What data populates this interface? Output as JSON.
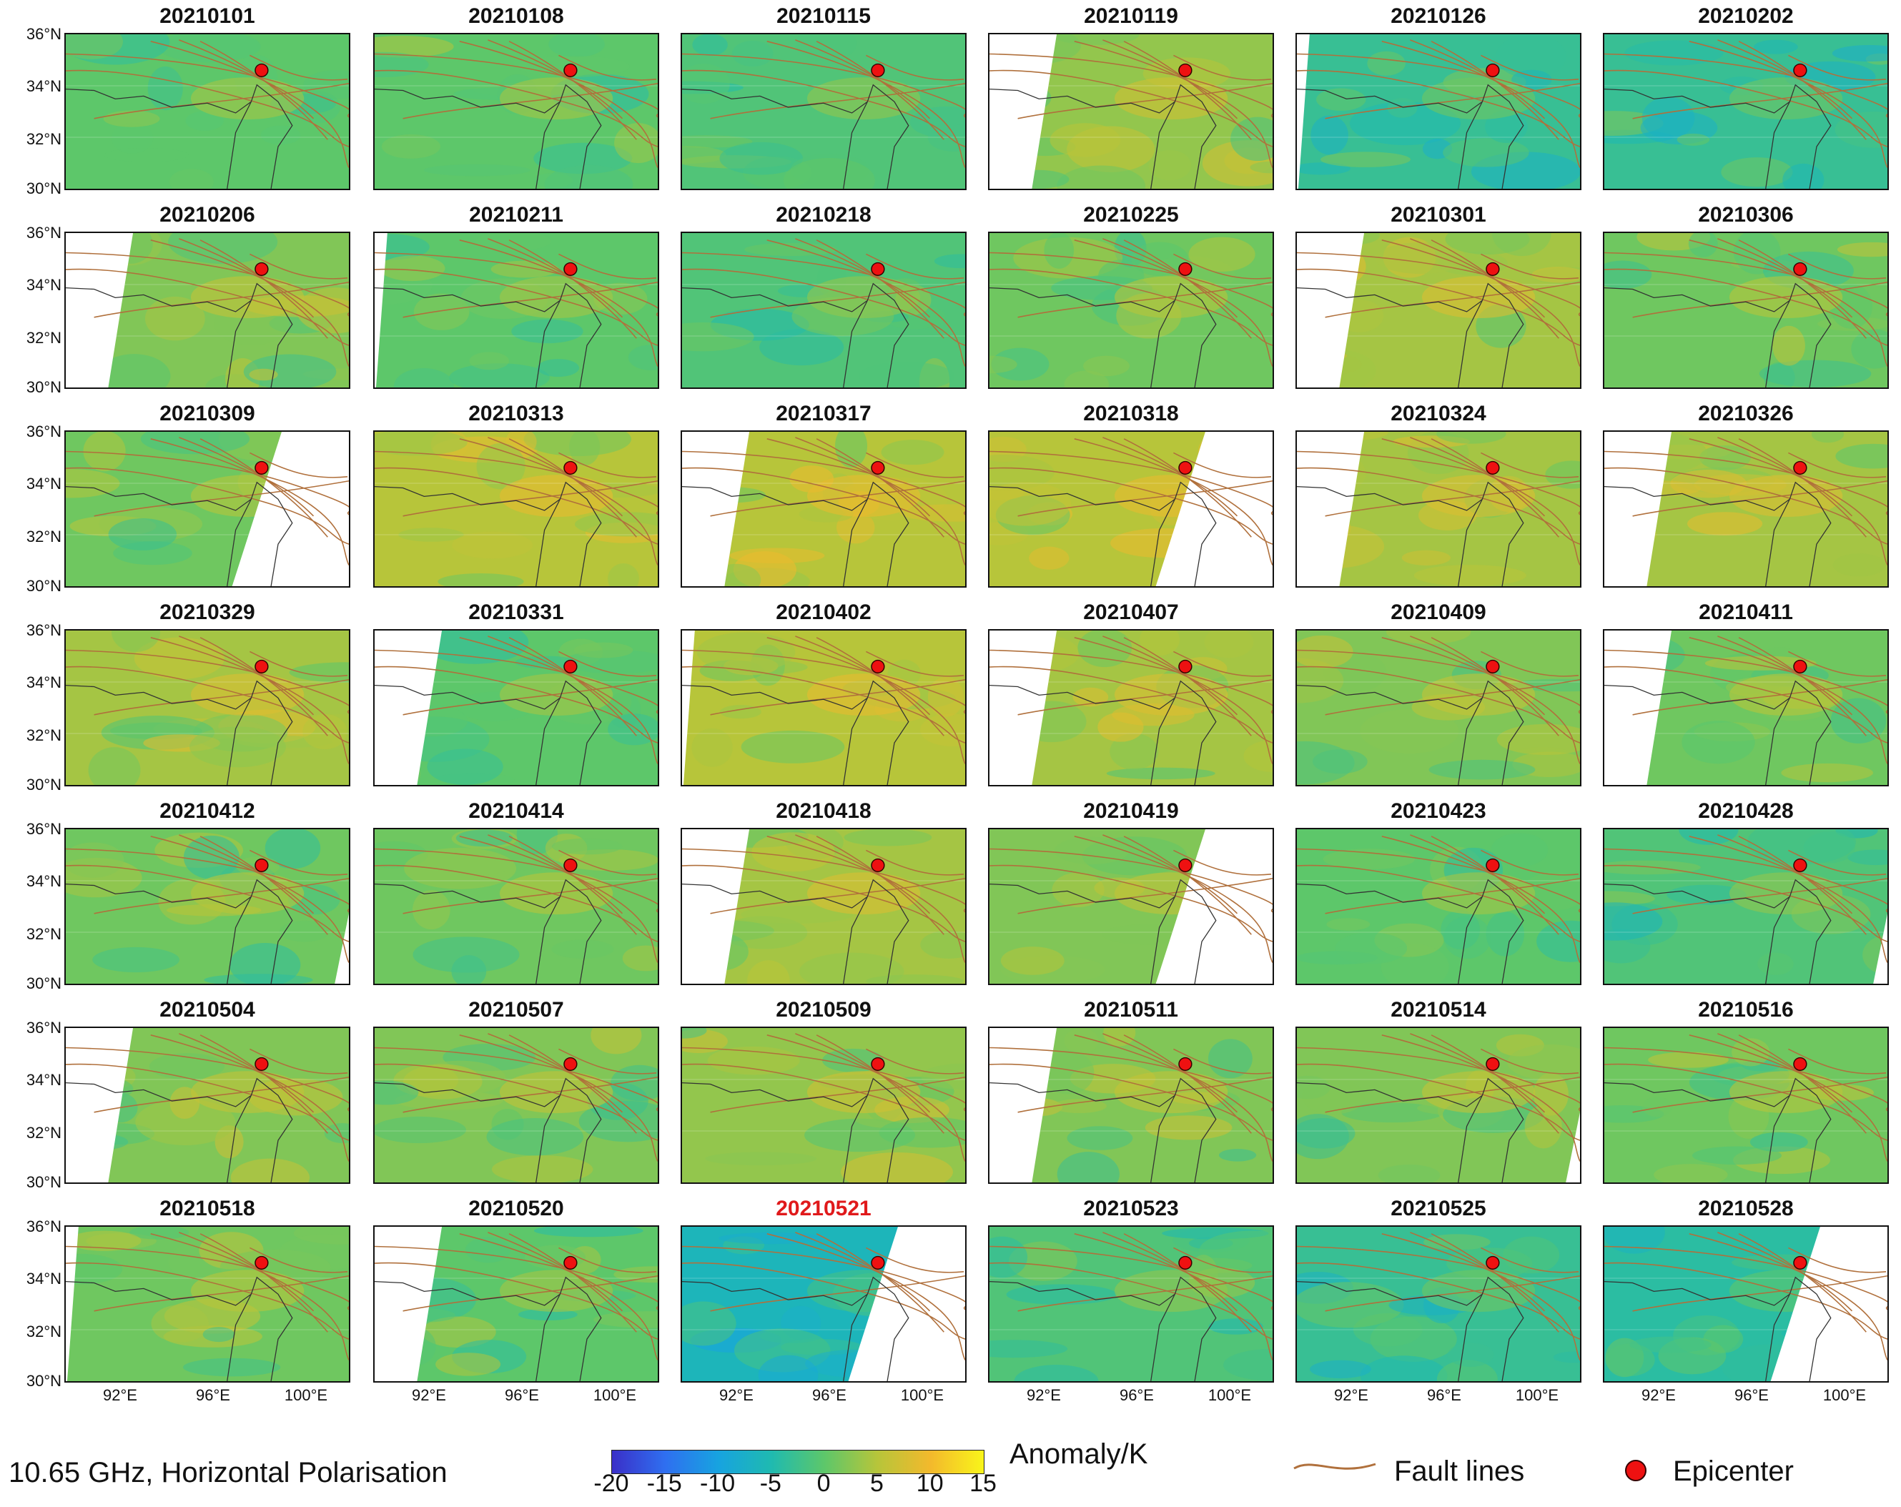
{
  "chart_data": {
    "type": "heatmap",
    "title": "10.65 GHz, Horizontal Polarisation",
    "colorbar": {
      "label": "Anomaly/K",
      "range": [
        -20,
        15
      ],
      "ticks": [
        "-20",
        "-15",
        "-10",
        "-5",
        "0",
        "5",
        "10",
        "15"
      ],
      "colors": [
        "#3a2fc8",
        "#2f6ff0",
        "#17a3e0",
        "#1fbab0",
        "#5dc76a",
        "#b7c53a",
        "#f3b92c",
        "#f9f51a"
      ]
    },
    "lat_ticks": [
      "36°N",
      "34°N",
      "32°N",
      "30°N"
    ],
    "lon_ticks": [
      "92°E",
      "96°E",
      "100°E"
    ],
    "lat_range": [
      30,
      36
    ],
    "lon_range": [
      90,
      102
    ],
    "epicenter": {
      "lon": 98.3,
      "lat": 34.6
    },
    "highlight_date": "20210521",
    "panels": [
      {
        "date": "20210101",
        "mean": 0,
        "swath": "full"
      },
      {
        "date": "20210108",
        "mean": 0,
        "swath": "full"
      },
      {
        "date": "20210115",
        "mean": -1,
        "swath": "full"
      },
      {
        "date": "20210119",
        "mean": 3,
        "swath": "left-gap"
      },
      {
        "date": "20210126",
        "mean": -3,
        "swath": "left-sliver"
      },
      {
        "date": "20210202",
        "mean": -3,
        "swath": "full"
      },
      {
        "date": "20210206",
        "mean": 2,
        "swath": "left-gap"
      },
      {
        "date": "20210211",
        "mean": 0,
        "swath": "left-sliver"
      },
      {
        "date": "20210218",
        "mean": -1,
        "swath": "full"
      },
      {
        "date": "20210225",
        "mean": 1,
        "swath": "full"
      },
      {
        "date": "20210301",
        "mean": 4,
        "swath": "left-gap"
      },
      {
        "date": "20210306",
        "mean": 1,
        "swath": "full"
      },
      {
        "date": "20210309",
        "mean": 1,
        "swath": "right-gap"
      },
      {
        "date": "20210313",
        "mean": 5,
        "swath": "full"
      },
      {
        "date": "20210317",
        "mean": 5,
        "swath": "left-gap"
      },
      {
        "date": "20210318",
        "mean": 5,
        "swath": "right-gap"
      },
      {
        "date": "20210324",
        "mean": 4,
        "swath": "left-gap"
      },
      {
        "date": "20210326",
        "mean": 4,
        "swath": "left-gap"
      },
      {
        "date": "20210329",
        "mean": 4,
        "swath": "full"
      },
      {
        "date": "20210331",
        "mean": 0,
        "swath": "left-gap"
      },
      {
        "date": "20210402",
        "mean": 5,
        "swath": "left-sliver"
      },
      {
        "date": "20210407",
        "mean": 4,
        "swath": "left-gap"
      },
      {
        "date": "20210409",
        "mean": 2,
        "swath": "full"
      },
      {
        "date": "20210411",
        "mean": 1,
        "swath": "left-gap"
      },
      {
        "date": "20210412",
        "mean": 1,
        "swath": "right-corner"
      },
      {
        "date": "20210414",
        "mean": 1,
        "swath": "full"
      },
      {
        "date": "20210418",
        "mean": 4,
        "swath": "left-gap"
      },
      {
        "date": "20210419",
        "mean": 2,
        "swath": "right-gap"
      },
      {
        "date": "20210423",
        "mean": 0,
        "swath": "full"
      },
      {
        "date": "20210428",
        "mean": -1,
        "swath": "right-corner"
      },
      {
        "date": "20210504",
        "mean": 2,
        "swath": "left-gap"
      },
      {
        "date": "20210507",
        "mean": 2,
        "swath": "full"
      },
      {
        "date": "20210509",
        "mean": 3,
        "swath": "full"
      },
      {
        "date": "20210511",
        "mean": 2,
        "swath": "left-gap"
      },
      {
        "date": "20210514",
        "mean": 2,
        "swath": "right-corner"
      },
      {
        "date": "20210516",
        "mean": 1,
        "swath": "full"
      },
      {
        "date": "20210518",
        "mean": 1,
        "swath": "left-sliver"
      },
      {
        "date": "20210520",
        "mean": 0,
        "swath": "left-gap"
      },
      {
        "date": "20210521",
        "mean": -6,
        "swath": "right-gap"
      },
      {
        "date": "20210523",
        "mean": -1,
        "swath": "full"
      },
      {
        "date": "20210525",
        "mean": -3,
        "swath": "full"
      },
      {
        "date": "20210528",
        "mean": -4,
        "swath": "right-gap"
      }
    ],
    "legend": {
      "fault_lines": "Fault lines",
      "epicenter": "Epicenter"
    }
  },
  "colors": {
    "fault": "#b0703c",
    "epicenter": "#ee1111",
    "border": "#333333",
    "highlight": "#e0191b"
  }
}
